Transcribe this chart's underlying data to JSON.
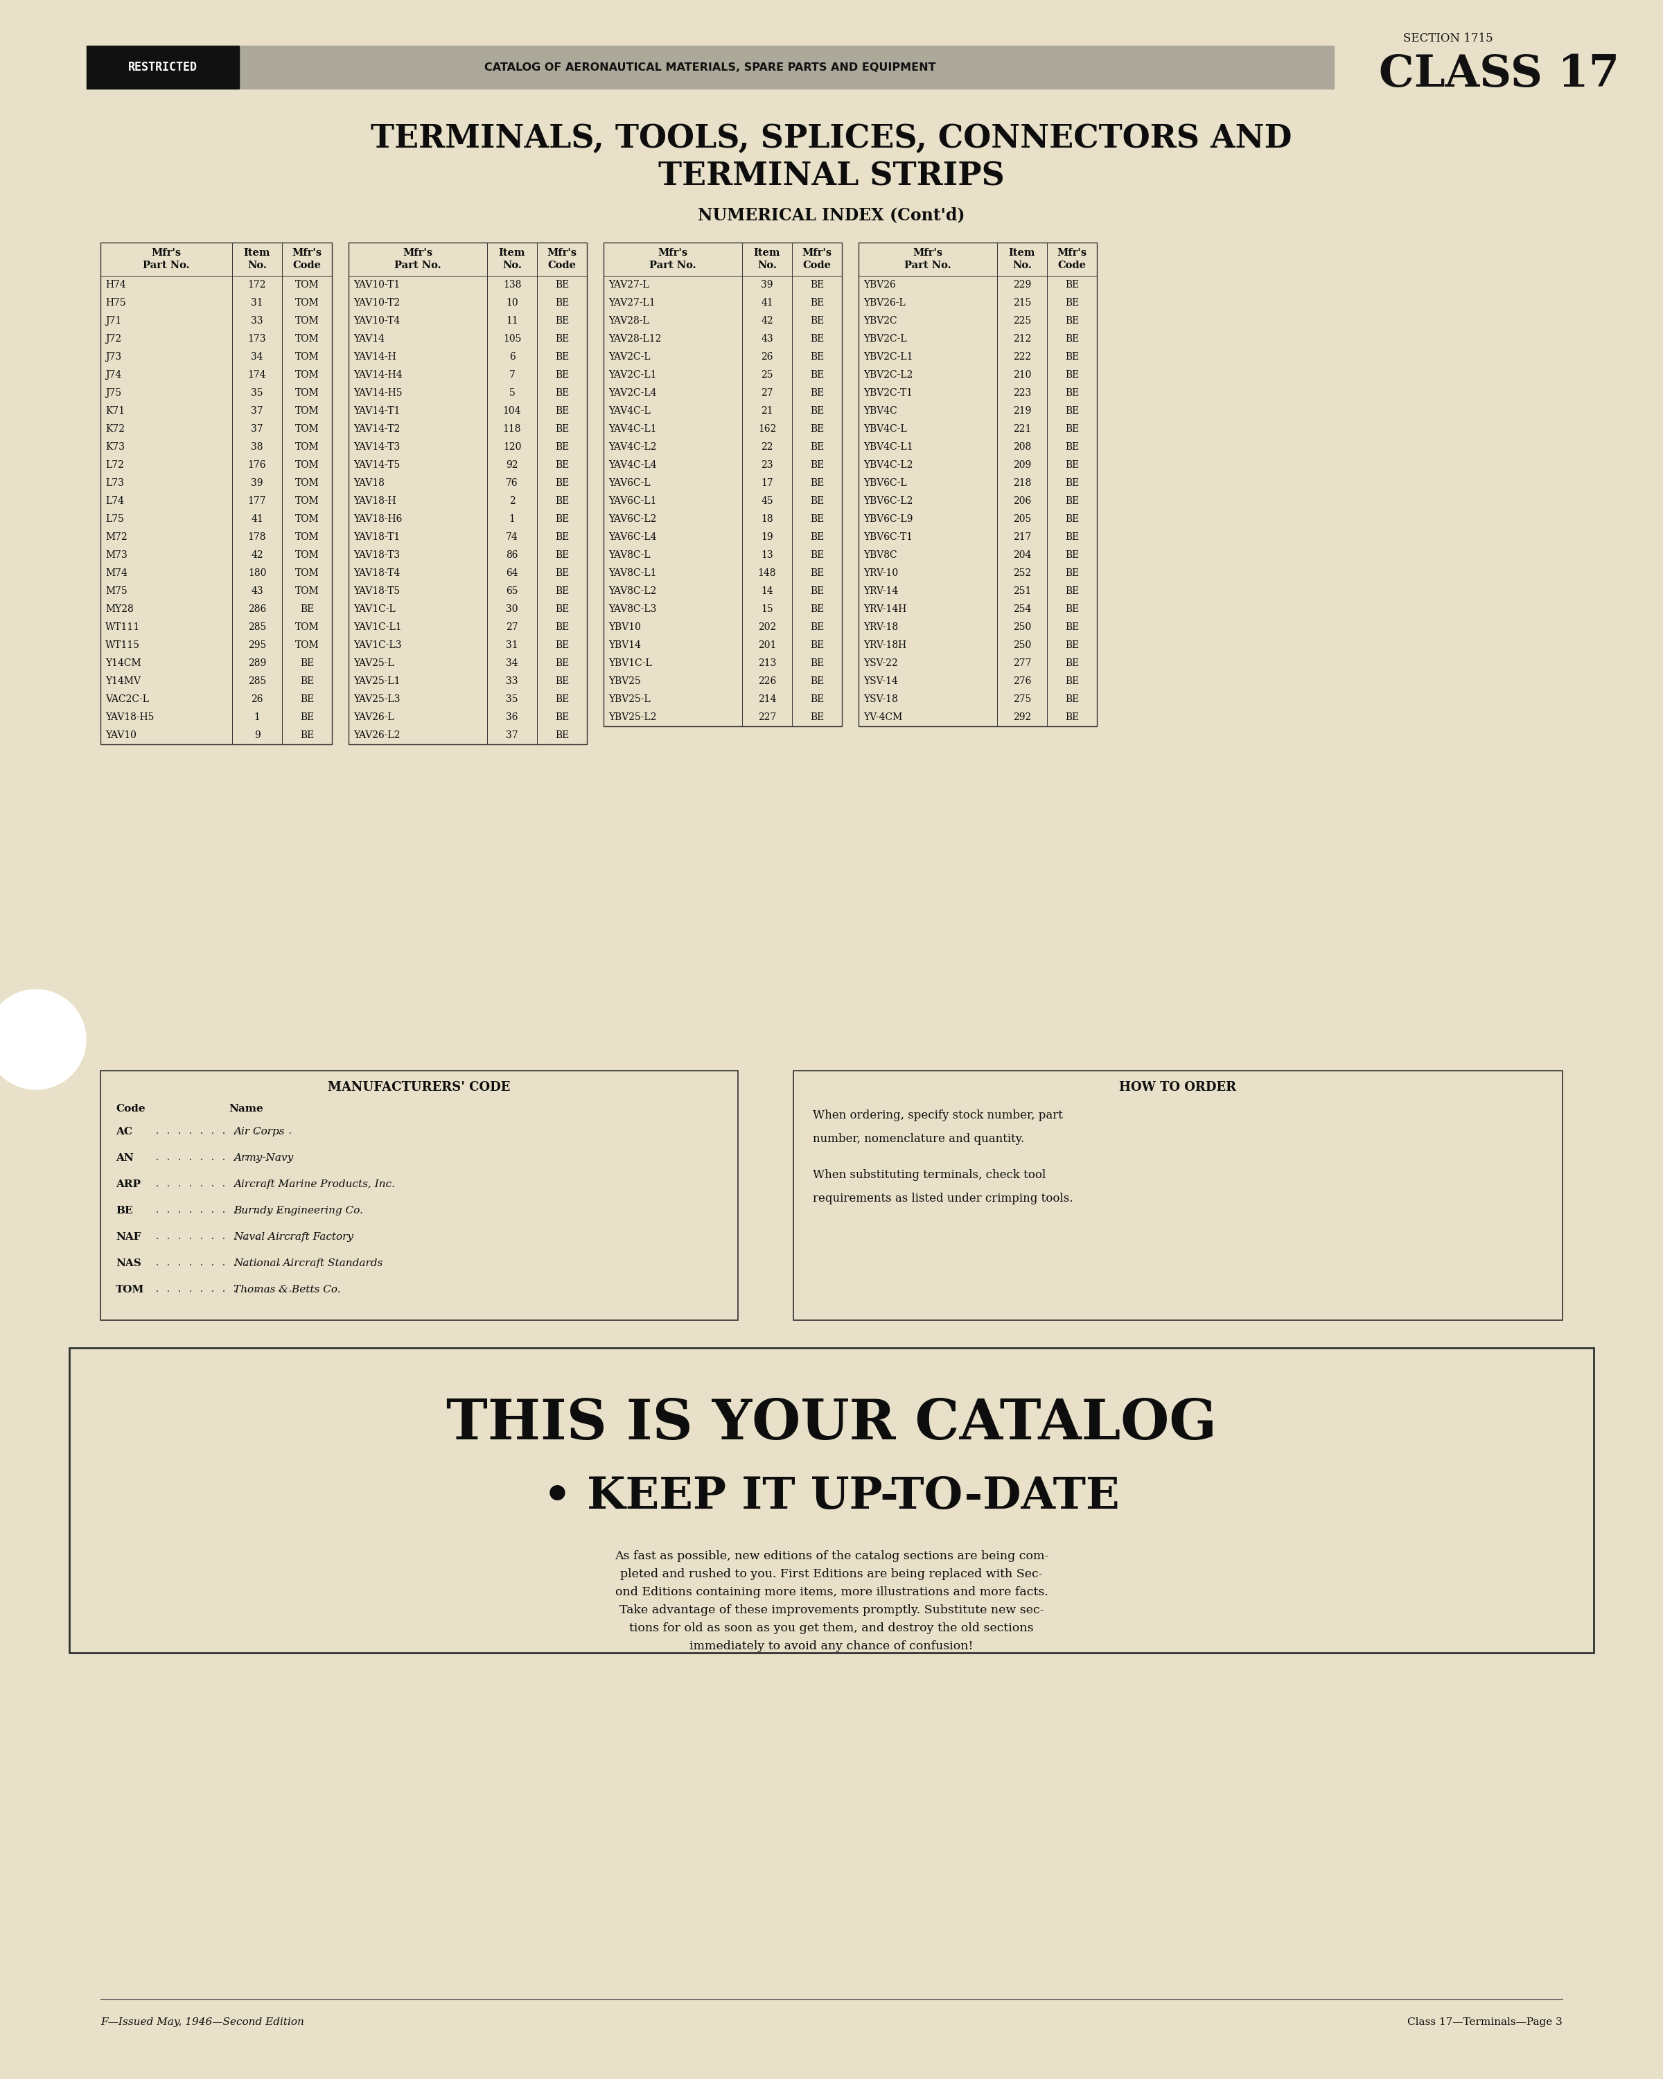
{
  "bg_color": "#e8e0c8",
  "page_title_line1": "TERMINALS, TOOLS, SPLICES, CONNECTORS AND",
  "page_title_line2": "TERMINAL STRIPS",
  "section_label": "SECTION 1715",
  "class_label": "CLASS 17",
  "restricted_text": "RESTRICTED",
  "header_banner_text": "CATALOG OF AERONAUTICAL MATERIALS, SPARE PARTS AND EQUIPMENT",
  "numerical_index_title": "NUMERICAL INDEX (Cont'd)",
  "table1_headers": [
    "Mfr's\nPart No.",
    "Item\nNo.",
    "Mfr's\nCode"
  ],
  "table1_data": [
    [
      "H74",
      "172",
      "TOM"
    ],
    [
      "H75",
      "31",
      "TOM"
    ],
    [
      "J71",
      "33",
      "TOM"
    ],
    [
      "J72",
      "173",
      "TOM"
    ],
    [
      "J73",
      "34",
      "TOM"
    ],
    [
      "J74",
      "174",
      "TOM"
    ],
    [
      "J75",
      "35",
      "TOM"
    ],
    [
      "K71",
      "37",
      "TOM"
    ],
    [
      "K72",
      "37",
      "TOM"
    ],
    [
      "K73",
      "38",
      "TOM"
    ],
    [
      "L72",
      "176",
      "TOM"
    ],
    [
      "L73",
      "39",
      "TOM"
    ],
    [
      "L74",
      "177",
      "TOM"
    ],
    [
      "L75",
      "41",
      "TOM"
    ],
    [
      "M72",
      "178",
      "TOM"
    ],
    [
      "M73",
      "42",
      "TOM"
    ],
    [
      "M74",
      "180",
      "TOM"
    ],
    [
      "M75",
      "43",
      "TOM"
    ],
    [
      "MY28",
      "286",
      "BE"
    ],
    [
      "WT111",
      "285",
      "TOM"
    ],
    [
      "WT115",
      "295",
      "TOM"
    ],
    [
      "Y14CM",
      "289",
      "BE"
    ],
    [
      "Y14MV",
      "285",
      "BE"
    ],
    [
      "VAC2C-L",
      "26",
      "BE"
    ],
    [
      "YAV18-H5",
      "1",
      "BE"
    ],
    [
      "YAV10",
      "9",
      "BE"
    ]
  ],
  "table2_headers": [
    "Mfr's\nPart No.",
    "Item\nNo.",
    "Mfr's\nCode"
  ],
  "table2_data": [
    [
      "YAV10-T1",
      "138",
      "BE"
    ],
    [
      "YAV10-T2",
      "10",
      "BE"
    ],
    [
      "YAV10-T4",
      "11",
      "BE"
    ],
    [
      "YAV14",
      "105",
      "BE"
    ],
    [
      "YAV14-H",
      "6",
      "BE"
    ],
    [
      "YAV14-H4",
      "7",
      "BE"
    ],
    [
      "YAV14-H5",
      "5",
      "BE"
    ],
    [
      "YAV14-T1",
      "104",
      "BE"
    ],
    [
      "YAV14-T2",
      "118",
      "BE"
    ],
    [
      "YAV14-T3",
      "120",
      "BE"
    ],
    [
      "YAV14-T5",
      "92",
      "BE"
    ],
    [
      "YAV18",
      "76",
      "BE"
    ],
    [
      "YAV18-H",
      "2",
      "BE"
    ],
    [
      "YAV18-H6",
      "1",
      "BE"
    ],
    [
      "YAV18-T1",
      "74",
      "BE"
    ],
    [
      "YAV18-T3",
      "86",
      "BE"
    ],
    [
      "YAV18-T4",
      "64",
      "BE"
    ],
    [
      "YAV18-T5",
      "65",
      "BE"
    ],
    [
      "YAV1C-L",
      "30",
      "BE"
    ],
    [
      "YAV1C-L1",
      "27",
      "BE"
    ],
    [
      "YAV1C-L3",
      "31",
      "BE"
    ],
    [
      "YAV25-L",
      "34",
      "BE"
    ],
    [
      "YAV25-L1",
      "33",
      "BE"
    ],
    [
      "YAV25-L3",
      "35",
      "BE"
    ],
    [
      "YAV26-L",
      "36",
      "BE"
    ],
    [
      "YAV26-L2",
      "37",
      "BE"
    ]
  ],
  "table3_headers": [
    "Mfr's\nPart No.",
    "Item\nNo.",
    "Mfr's\nCode"
  ],
  "table3_data": [
    [
      "YAV27-L",
      "39",
      "BE"
    ],
    [
      "YAV27-L1",
      "41",
      "BE"
    ],
    [
      "YAV28-L",
      "42",
      "BE"
    ],
    [
      "YAV28-L12",
      "43",
      "BE"
    ],
    [
      "YAV2C-L",
      "26",
      "BE"
    ],
    [
      "YAV2C-L1",
      "25",
      "BE"
    ],
    [
      "YAV2C-L4",
      "27",
      "BE"
    ],
    [
      "YAV4C-L",
      "21",
      "BE"
    ],
    [
      "YAV4C-L1",
      "162",
      "BE"
    ],
    [
      "YAV4C-L2",
      "22",
      "BE"
    ],
    [
      "YAV4C-L4",
      "23",
      "BE"
    ],
    [
      "YAV6C-L",
      "17",
      "BE"
    ],
    [
      "YAV6C-L1",
      "45",
      "BE"
    ],
    [
      "YAV6C-L2",
      "18",
      "BE"
    ],
    [
      "YAV6C-L4",
      "19",
      "BE"
    ],
    [
      "YAV8C-L",
      "13",
      "BE"
    ],
    [
      "YAV8C-L1",
      "148",
      "BE"
    ],
    [
      "YAV8C-L2",
      "14",
      "BE"
    ],
    [
      "YAV8C-L3",
      "15",
      "BE"
    ],
    [
      "YBV10",
      "202",
      "BE"
    ],
    [
      "YBV14",
      "201",
      "BE"
    ],
    [
      "YBV1C-L",
      "213",
      "BE"
    ],
    [
      "YBV25",
      "226",
      "BE"
    ],
    [
      "YBV25-L",
      "214",
      "BE"
    ],
    [
      "YBV25-L2",
      "227",
      "BE"
    ]
  ],
  "table4_headers": [
    "Mfr's\nPart No.",
    "Item\nNo.",
    "Mfr's\nCode"
  ],
  "table4_data": [
    [
      "YBV26",
      "229",
      "BE"
    ],
    [
      "YBV26-L",
      "215",
      "BE"
    ],
    [
      "YBV2C",
      "225",
      "BE"
    ],
    [
      "YBV2C-L",
      "212",
      "BE"
    ],
    [
      "YBV2C-L1",
      "222",
      "BE"
    ],
    [
      "YBV2C-L2",
      "210",
      "BE"
    ],
    [
      "YBV2C-T1",
      "223",
      "BE"
    ],
    [
      "YBV4C",
      "219",
      "BE"
    ],
    [
      "YBV4C-L",
      "221",
      "BE"
    ],
    [
      "YBV4C-L1",
      "208",
      "BE"
    ],
    [
      "YBV4C-L2",
      "209",
      "BE"
    ],
    [
      "YBV6C-L",
      "218",
      "BE"
    ],
    [
      "YBV6C-L2",
      "206",
      "BE"
    ],
    [
      "YBV6C-L9",
      "205",
      "BE"
    ],
    [
      "YBV6C-T1",
      "217",
      "BE"
    ],
    [
      "YBV8C",
      "204",
      "BE"
    ],
    [
      "YRV-10",
      "252",
      "BE"
    ],
    [
      "YRV-14",
      "251",
      "BE"
    ],
    [
      "YRV-14H",
      "254",
      "BE"
    ],
    [
      "YRV-18",
      "250",
      "BE"
    ],
    [
      "YRV-18H",
      "250",
      "BE"
    ],
    [
      "YSV-22",
      "277",
      "BE"
    ],
    [
      "YSV-14",
      "276",
      "BE"
    ],
    [
      "YSV-18",
      "275",
      "BE"
    ],
    [
      "YV-4CM",
      "292",
      "BE"
    ]
  ],
  "mfr_codes": [
    [
      "AC",
      "Air Corps"
    ],
    [
      "AN",
      "Army-Navy"
    ],
    [
      "ARP",
      "Aircraft Marine Products, Inc."
    ],
    [
      "BE",
      "Burndy Engineering Co."
    ],
    [
      "NAF",
      "Naval Aircraft Factory"
    ],
    [
      "NAS",
      "National Aircraft Standards"
    ],
    [
      "TOM",
      "Thomas & Betts Co."
    ]
  ],
  "how_to_order_title": "HOW TO ORDER",
  "how_to_order_lines": [
    "When ordering, specify stock number, part",
    "number, nomenclature and quantity.",
    "",
    "When substituting terminals, check tool",
    "requirements as listed under crimping tools."
  ],
  "big_text_line1": "THIS IS YOUR CATALOG",
  "big_text_line2": "• KEEP IT UP-TO-DATE",
  "body_text_lines": [
    "As fast as possible, new editions of the catalog sections are being com-",
    "pleted and rushed to you. First Editions are being replaced with Sec-",
    "ond Editions containing more items, more illustrations and more facts.",
    "Take advantage of these improvements promptly. Substitute new sec-",
    "tions for old as soon as you get them, and destroy the old sections",
    "immediately to avoid any chance of confusion!"
  ],
  "footer_left": "F—Issued May, 1946—Second Edition",
  "footer_right": "Class 17—Terminals—Page 3"
}
